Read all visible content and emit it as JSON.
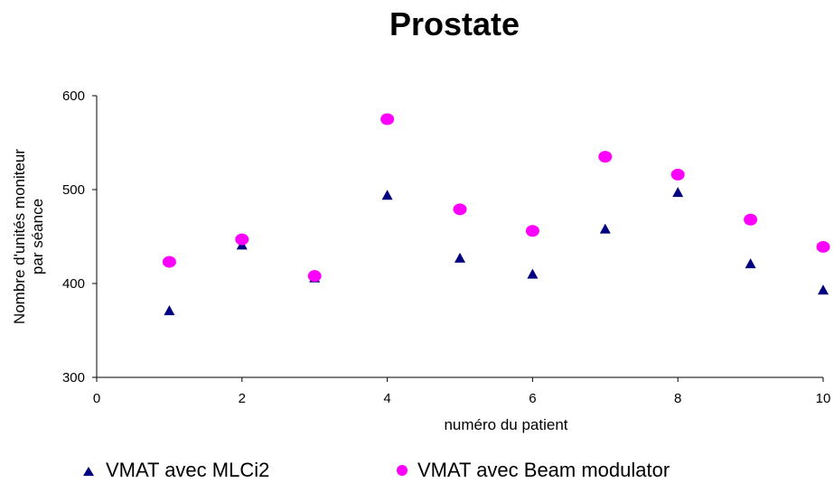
{
  "chart_data": {
    "type": "scatter",
    "title": "Prostate",
    "xlabel": "numéro du patient",
    "ylabel": [
      "Nombre d'unités moniteur",
      "par séance"
    ],
    "xlim": [
      0,
      10
    ],
    "ylim": [
      300,
      600
    ],
    "xticks": [
      "0",
      "2",
      "4",
      "6",
      "8",
      "10"
    ],
    "yticks": [
      "300",
      "400",
      "500",
      "600"
    ],
    "grid": false,
    "legend_position": "bottom",
    "series": [
      {
        "name": "VMAT avec MLCi2",
        "marker": "triangle",
        "color": "#000080",
        "x": [
          1,
          2,
          3,
          4,
          5,
          6,
          7,
          8,
          9,
          10
        ],
        "y": [
          371,
          441,
          406,
          494,
          427,
          410,
          458,
          497,
          421,
          393
        ]
      },
      {
        "name": "VMAT avec Beam modulator",
        "marker": "circle",
        "color": "#ff00ff",
        "x": [
          1,
          2,
          3,
          4,
          5,
          6,
          7,
          8,
          9,
          10
        ],
        "y": [
          423,
          447,
          408,
          575,
          479,
          456,
          535,
          516,
          468,
          439
        ]
      }
    ]
  }
}
